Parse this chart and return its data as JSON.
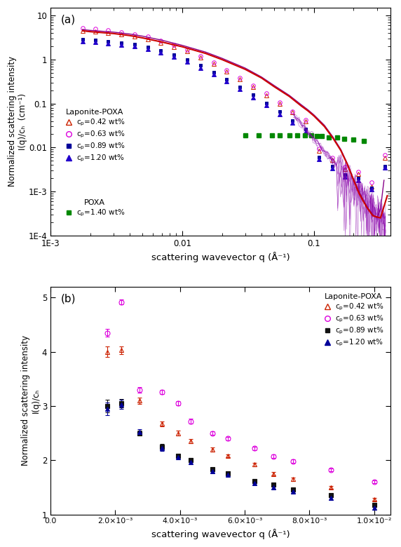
{
  "panel_a": {
    "title": "(a)",
    "xlabel": "scattering wavevector q (Å⁻¹)",
    "ylabel": "Normalized scattering intensity\nI(q)/cₕ  (cm⁻¹)",
    "xlim": [
      0.00175,
      0.38
    ],
    "ylim": [
      0.0001,
      15
    ],
    "series": [
      {
        "label": "c_p=0.42 wt%",
        "color": "#cc2200",
        "marker": "^",
        "fillstyle": "none",
        "ms": 4,
        "q": [
          0.00175,
          0.00218,
          0.00274,
          0.00345,
          0.00434,
          0.00547,
          0.00688,
          0.00866,
          0.0109,
          0.01372,
          0.01727,
          0.02174,
          0.02738,
          0.03447,
          0.04339,
          0.05462,
          0.06876,
          0.08659,
          0.10902,
          0.13723,
          0.17273,
          0.21746,
          0.27384,
          0.34467
        ],
        "I": [
          4.5,
          4.3,
          4.0,
          3.7,
          3.3,
          2.9,
          2.4,
          1.95,
          1.52,
          1.12,
          0.79,
          0.54,
          0.36,
          0.24,
          0.155,
          0.099,
          0.063,
          0.04,
          0.0085,
          0.0052,
          0.0032,
          0.0025,
          0.0013,
          0.0058
        ]
      },
      {
        "label": "c_p=0.63 wt%",
        "color": "#dd00dd",
        "marker": "o",
        "fillstyle": "none",
        "ms": 4,
        "q": [
          0.00175,
          0.00218,
          0.00274,
          0.00345,
          0.00434,
          0.00547,
          0.00688,
          0.00866,
          0.0109,
          0.01372,
          0.01727,
          0.02174,
          0.02738,
          0.03447,
          0.04339,
          0.05462,
          0.06876,
          0.08659,
          0.10902,
          0.13723,
          0.17273,
          0.21746,
          0.27384,
          0.34467
        ],
        "I": [
          5.2,
          5.0,
          4.6,
          4.2,
          3.8,
          3.3,
          2.7,
          2.15,
          1.65,
          1.2,
          0.85,
          0.58,
          0.39,
          0.26,
          0.168,
          0.106,
          0.067,
          0.042,
          0.0095,
          0.0058,
          0.0036,
          0.0028,
          0.0016,
          0.0068
        ]
      },
      {
        "label": "c_p=0.89 wt%",
        "color": "#000099",
        "marker": "s",
        "fillstyle": "full",
        "ms": 3.5,
        "q": [
          0.00175,
          0.00218,
          0.00274,
          0.00345,
          0.00434,
          0.00547,
          0.00688,
          0.00866,
          0.0109,
          0.01372,
          0.01727,
          0.02174,
          0.02738,
          0.03447,
          0.04339,
          0.05462,
          0.06876,
          0.08659,
          0.10902,
          0.13723,
          0.17273,
          0.21746,
          0.27384,
          0.34467
        ],
        "I": [
          2.85,
          2.75,
          2.6,
          2.42,
          2.2,
          1.95,
          1.62,
          1.3,
          1.0,
          0.73,
          0.52,
          0.355,
          0.238,
          0.158,
          0.102,
          0.065,
          0.041,
          0.026,
          0.006,
          0.0038,
          0.0024,
          0.002,
          0.0012,
          0.0038
        ]
      },
      {
        "label": "c_p=1.20 wt%",
        "color": "#2200cc",
        "marker": "^",
        "fillstyle": "full",
        "ms": 4,
        "q": [
          0.00175,
          0.00218,
          0.00274,
          0.00345,
          0.00434,
          0.00547,
          0.00688,
          0.00866,
          0.0109,
          0.01372,
          0.01727,
          0.02174,
          0.02738,
          0.03447,
          0.04339,
          0.05462,
          0.06876,
          0.08659,
          0.10902,
          0.13723,
          0.17273,
          0.21746,
          0.27384,
          0.34467
        ],
        "I": [
          2.6,
          2.5,
          2.35,
          2.18,
          1.98,
          1.74,
          1.45,
          1.16,
          0.89,
          0.65,
          0.46,
          0.315,
          0.21,
          0.139,
          0.09,
          0.057,
          0.036,
          0.023,
          0.0055,
          0.0034,
          0.0022,
          0.0018,
          0.0011,
          0.0035
        ]
      }
    ],
    "poxa": {
      "label": "c_p=1.40 wt%",
      "color": "#008800",
      "marker": "s",
      "fillstyle": "full",
      "ms": 5,
      "q": [
        0.03,
        0.038,
        0.048,
        0.055,
        0.065,
        0.075,
        0.085,
        0.095,
        0.105,
        0.115,
        0.13,
        0.15,
        0.17,
        0.2,
        0.24
      ],
      "I": [
        0.019,
        0.019,
        0.019,
        0.019,
        0.019,
        0.019,
        0.019,
        0.019,
        0.018,
        0.018,
        0.017,
        0.017,
        0.016,
        0.015,
        0.014
      ]
    },
    "fit_red": {
      "color": "#cc0000",
      "q": [
        0.00175,
        0.002,
        0.003,
        0.004,
        0.005,
        0.007,
        0.01,
        0.015,
        0.02,
        0.03,
        0.04,
        0.05,
        0.065,
        0.08,
        0.09,
        0.1,
        0.12,
        0.14,
        0.16,
        0.18,
        0.2,
        0.22,
        0.25,
        0.28,
        0.32,
        0.36
      ],
      "I": [
        4.5,
        4.3,
        3.9,
        3.5,
        3.1,
        2.5,
        1.95,
        1.38,
        1.0,
        0.6,
        0.38,
        0.24,
        0.145,
        0.088,
        0.068,
        0.052,
        0.03,
        0.016,
        0.0085,
        0.004,
        0.0018,
        0.0009,
        0.00045,
        0.00028,
        0.00025,
        0.0008
      ]
    },
    "fit_purple": {
      "color": "#880088",
      "q": [
        0.00175,
        0.002,
        0.003,
        0.004,
        0.005,
        0.007,
        0.01,
        0.015,
        0.02,
        0.03,
        0.04,
        0.05,
        0.065,
        0.08,
        0.09,
        0.1,
        0.12,
        0.14,
        0.16,
        0.18,
        0.2,
        0.22,
        0.24,
        0.26,
        0.28,
        0.3,
        0.32,
        0.34
      ],
      "I": [
        4.8,
        4.6,
        4.2,
        3.8,
        3.4,
        2.75,
        2.1,
        1.48,
        1.07,
        0.64,
        0.4,
        0.255,
        0.153,
        0.094,
        0.072,
        0.055,
        0.032,
        0.017,
        0.009,
        0.0042,
        0.0019,
        0.001,
        0.0006,
        0.0004,
        0.0003,
        0.00025,
        0.0004,
        0.0018
      ]
    }
  },
  "panel_b": {
    "title": "(b)",
    "xlabel": "scattering wavevector q (Å⁻¹)",
    "ylabel": "Normalized scattering intensity\nI(q)/cₕ",
    "xlim": [
      0.0,
      0.0105
    ],
    "ylim": [
      1.0,
      5.2
    ],
    "xtick_vals": [
      0.0,
      0.002,
      0.004,
      0.006,
      0.008,
      0.01
    ],
    "xtick_labels": [
      "0.0",
      "2.0×10⁻³",
      "4.0×10⁻³",
      "6.0×10⁻³",
      "8.0×10⁻³",
      "1.0×10⁻²"
    ],
    "ytick_vals": [
      1,
      2,
      3,
      4,
      5
    ],
    "series": [
      {
        "label": "c_p=0.42 wt%",
        "color": "#cc2200",
        "marker": "^",
        "fillstyle": "none",
        "ms": 5,
        "q": [
          0.00175,
          0.00218,
          0.00274,
          0.00345,
          0.00395,
          0.00434,
          0.005,
          0.00547,
          0.0063,
          0.00688,
          0.0075,
          0.00866,
          0.01
        ],
        "I": [
          4.0,
          4.03,
          3.1,
          2.67,
          2.5,
          2.35,
          2.2,
          2.08,
          1.92,
          1.75,
          1.65,
          1.5,
          1.28
        ],
        "yerr": [
          0.1,
          0.07,
          0.06,
          0.05,
          0.04,
          0.04,
          0.04,
          0.03,
          0.03,
          0.03,
          0.03,
          0.03,
          0.03
        ]
      },
      {
        "label": "c_p=0.63 wt%",
        "color": "#dd00dd",
        "marker": "o",
        "fillstyle": "none",
        "ms": 5,
        "q": [
          0.00175,
          0.00218,
          0.00274,
          0.00345,
          0.00395,
          0.00434,
          0.005,
          0.00547,
          0.0063,
          0.00688,
          0.0075,
          0.00866,
          0.01
        ],
        "I": [
          4.35,
          4.92,
          3.3,
          3.26,
          3.05,
          2.72,
          2.5,
          2.4,
          2.22,
          2.07,
          1.98,
          1.82,
          1.6
        ],
        "yerr": [
          0.07,
          0.05,
          0.05,
          0.04,
          0.04,
          0.04,
          0.03,
          0.03,
          0.03,
          0.03,
          0.03,
          0.03,
          0.03
        ]
      },
      {
        "label": "c_p=0.89 wt%",
        "color": "#111111",
        "marker": "s",
        "fillstyle": "full",
        "ms": 4,
        "q": [
          0.00175,
          0.00218,
          0.00274,
          0.00345,
          0.00395,
          0.00434,
          0.005,
          0.00547,
          0.0063,
          0.00688,
          0.0075,
          0.00866,
          0.01
        ],
        "I": [
          3.0,
          3.05,
          2.5,
          2.25,
          2.08,
          2.0,
          1.83,
          1.76,
          1.62,
          1.55,
          1.46,
          1.35,
          1.18
        ],
        "yerr": [
          0.12,
          0.08,
          0.05,
          0.05,
          0.04,
          0.04,
          0.03,
          0.03,
          0.03,
          0.03,
          0.03,
          0.03,
          0.03
        ]
      },
      {
        "label": "c_p=1.20 wt%",
        "color": "#000099",
        "marker": "^",
        "fillstyle": "full",
        "ms": 5,
        "q": [
          0.00175,
          0.00218,
          0.00274,
          0.00345,
          0.00395,
          0.00434,
          0.005,
          0.00547,
          0.0063,
          0.00688,
          0.0075,
          0.00866,
          0.01
        ],
        "I": [
          2.95,
          3.03,
          2.52,
          2.22,
          2.05,
          1.97,
          1.8,
          1.73,
          1.58,
          1.5,
          1.42,
          1.3,
          1.12
        ],
        "yerr": [
          0.12,
          0.08,
          0.05,
          0.05,
          0.04,
          0.04,
          0.03,
          0.03,
          0.03,
          0.03,
          0.03,
          0.03,
          0.03
        ]
      }
    ]
  }
}
